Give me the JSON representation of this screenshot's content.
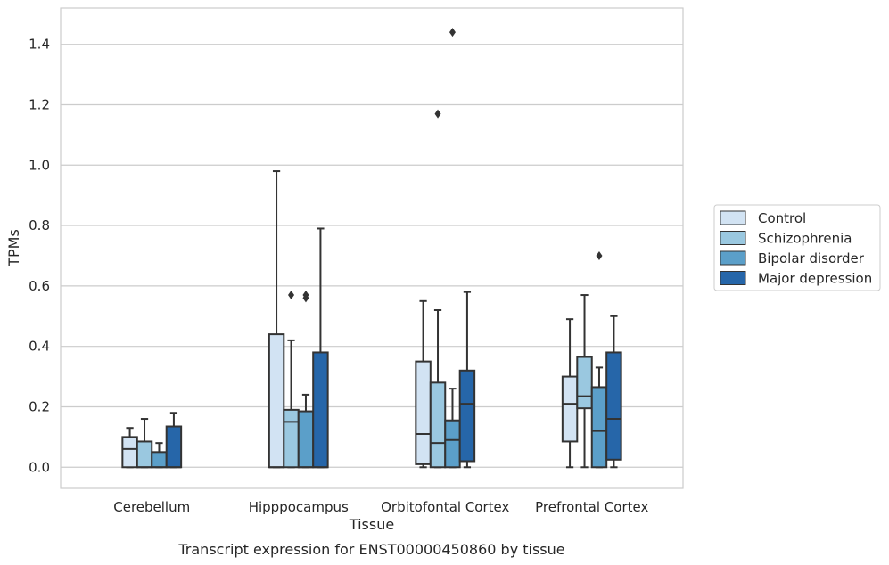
{
  "chart_data": {
    "type": "box",
    "title": "Transcript expression for ENST00000450860 by tissue",
    "xlabel": "Tissue",
    "ylabel": "TPMs",
    "ylim": [
      -0.07,
      1.52
    ],
    "yticks": [
      0.0,
      0.2,
      0.4,
      0.6,
      0.8,
      1.0,
      1.2,
      1.4
    ],
    "ytick_labels": [
      "0.0",
      "0.2",
      "0.4",
      "0.6",
      "0.8",
      "1.0",
      "1.2",
      "1.4"
    ],
    "grid": "horizontal",
    "legend_position": "right",
    "categories": [
      "Cerebellum",
      "Hipppocampus",
      "Orbitofontal Cortex",
      "Prefrontal Cortex"
    ],
    "series": [
      {
        "name": "Control",
        "color": "#d2e3f3",
        "boxes": [
          {
            "whisker_low": 0.0,
            "q1": 0.0,
            "median": 0.06,
            "q3": 0.1,
            "whisker_high": 0.13,
            "outliers": []
          },
          {
            "whisker_low": 0.0,
            "q1": 0.0,
            "median": 0.0,
            "q3": 0.44,
            "whisker_high": 0.98,
            "outliers": []
          },
          {
            "whisker_low": 0.0,
            "q1": 0.01,
            "median": 0.11,
            "q3": 0.35,
            "whisker_high": 0.55,
            "outliers": []
          },
          {
            "whisker_low": 0.0,
            "q1": 0.085,
            "median": 0.21,
            "q3": 0.3,
            "whisker_high": 0.49,
            "outliers": []
          }
        ]
      },
      {
        "name": "Schizophrenia",
        "color": "#9ac8e0",
        "boxes": [
          {
            "whisker_low": 0.0,
            "q1": 0.0,
            "median": 0.0,
            "q3": 0.085,
            "whisker_high": 0.16,
            "outliers": []
          },
          {
            "whisker_low": 0.0,
            "q1": 0.0,
            "median": 0.15,
            "q3": 0.19,
            "whisker_high": 0.42,
            "outliers": [
              0.57
            ]
          },
          {
            "whisker_low": 0.0,
            "q1": 0.0,
            "median": 0.08,
            "q3": 0.28,
            "whisker_high": 0.52,
            "outliers": [
              1.17
            ]
          },
          {
            "whisker_low": 0.0,
            "q1": 0.195,
            "median": 0.235,
            "q3": 0.365,
            "whisker_high": 0.57,
            "outliers": []
          }
        ]
      },
      {
        "name": "Bipolar disorder",
        "color": "#5b9fc9",
        "boxes": [
          {
            "whisker_low": 0.0,
            "q1": 0.0,
            "median": 0.0,
            "q3": 0.05,
            "whisker_high": 0.08,
            "outliers": []
          },
          {
            "whisker_low": 0.0,
            "q1": 0.0,
            "median": 0.0,
            "q3": 0.185,
            "whisker_high": 0.24,
            "outliers": [
              0.56,
              0.57
            ]
          },
          {
            "whisker_low": 0.0,
            "q1": 0.0,
            "median": 0.09,
            "q3": 0.155,
            "whisker_high": 0.26,
            "outliers": [
              1.44
            ]
          },
          {
            "whisker_low": 0.0,
            "q1": 0.0,
            "median": 0.12,
            "q3": 0.265,
            "whisker_high": 0.33,
            "outliers": [
              0.7
            ]
          }
        ]
      },
      {
        "name": "Major depression",
        "color": "#2666a9",
        "boxes": [
          {
            "whisker_low": 0.0,
            "q1": 0.0,
            "median": 0.0,
            "q3": 0.135,
            "whisker_high": 0.18,
            "outliers": []
          },
          {
            "whisker_low": 0.0,
            "q1": 0.0,
            "median": 0.0,
            "q3": 0.38,
            "whisker_high": 0.79,
            "outliers": []
          },
          {
            "whisker_low": 0.0,
            "q1": 0.02,
            "median": 0.21,
            "q3": 0.32,
            "whisker_high": 0.58,
            "outliers": []
          },
          {
            "whisker_low": 0.0,
            "q1": 0.025,
            "median": 0.16,
            "q3": 0.38,
            "whisker_high": 0.5,
            "outliers": []
          }
        ]
      }
    ]
  }
}
